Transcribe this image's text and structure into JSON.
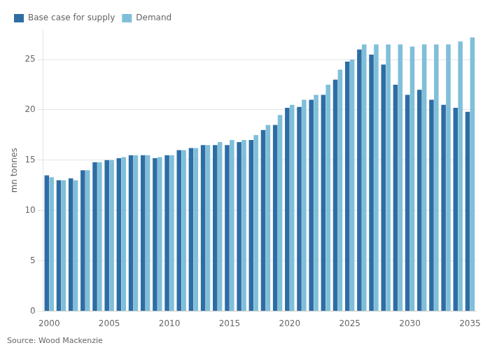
{
  "chart_data": {
    "type": "bar",
    "ylabel": "mn tonnes",
    "annotations": [
      "Source: Wood Mackenzie"
    ],
    "categories": [
      "2000",
      null,
      null,
      null,
      null,
      "2005",
      null,
      null,
      null,
      null,
      "2010",
      null,
      null,
      null,
      null,
      "2015",
      null,
      null,
      null,
      null,
      "2020",
      null,
      null,
      null,
      null,
      "2025",
      null,
      null,
      null,
      null,
      "2030",
      null,
      null,
      null,
      null,
      "2035"
    ],
    "series": [
      {
        "name": "Base case for supply",
        "color": "#2e6da4",
        "values": [
          13.5,
          13.0,
          13.2,
          14.0,
          14.8,
          15.0,
          15.2,
          15.5,
          15.5,
          15.2,
          15.5,
          16.0,
          16.2,
          16.5,
          16.5,
          16.5,
          16.8,
          17.0,
          18.0,
          18.5,
          20.2,
          20.3,
          21.0,
          21.5,
          23.0,
          24.8,
          26.0,
          25.5,
          24.5,
          22.5,
          21.5,
          22.0,
          21.0,
          20.5,
          20.2,
          19.8
        ]
      },
      {
        "name": "Demand",
        "color": "#7fbfda",
        "values": [
          13.3,
          13.0,
          13.0,
          14.0,
          14.8,
          15.0,
          15.3,
          15.5,
          15.5,
          15.3,
          15.5,
          16.0,
          16.2,
          16.5,
          16.8,
          17.0,
          17.0,
          17.5,
          18.5,
          19.5,
          20.5,
          21.0,
          21.5,
          22.5,
          24.0,
          25.0,
          26.5,
          26.5,
          26.5,
          26.5,
          26.3,
          26.5,
          26.5,
          26.5,
          26.8,
          27.2
        ]
      }
    ],
    "ylim": [
      0,
      28
    ],
    "yticks": [
      0,
      5,
      10,
      15,
      20,
      25
    ],
    "grid": true,
    "legend": "upper left"
  }
}
